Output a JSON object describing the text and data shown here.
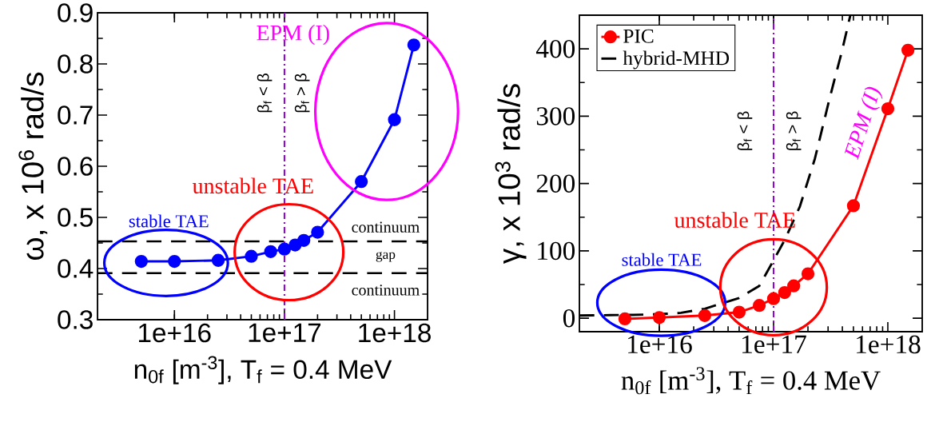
{
  "chart_data": [
    {
      "type": "line",
      "xlabel": "n$_{0f}$  [m$^{-3}$],   T$_{f}$ = 0.4 MeV",
      "ylabel": "ω,  x 10$^{6}$ rad/s",
      "log": "x",
      "xlim": [
        2000000000000000.0,
        2e+18
      ],
      "ylim": [
        0.3,
        0.9
      ],
      "xticks": [
        {
          "value": 1e+16,
          "label": "1e+16"
        },
        {
          "value": 1e+17,
          "label": "1e+17"
        },
        {
          "value": 1e+18,
          "label": "1e+18"
        }
      ],
      "yticks": [
        0.3,
        0.4,
        0.5,
        0.6,
        0.7,
        0.8,
        0.9
      ],
      "grid": false,
      "legend": false,
      "marker": "circle",
      "x": [
        5000000000000000.0,
        1e+16,
        2.5e+16,
        5e+16,
        7.5e+16,
        1e+17,
        1.25e+17,
        1.5e+17,
        2e+17,
        5e+17,
        1e+18,
        1.5e+18
      ],
      "series": [
        {
          "color": "#0000ff",
          "values": [
            0.414,
            0.414,
            0.416,
            0.424,
            0.433,
            0.438,
            0.446,
            0.455,
            0.471,
            0.57,
            0.691,
            0.837
          ]
        }
      ],
      "ref_lines": [
        {
          "axis": "y",
          "value": 0.453,
          "color": "#000000",
          "line_style": "dashed"
        },
        {
          "axis": "y",
          "value": 0.391,
          "color": "#000000",
          "line_style": "dashed"
        },
        {
          "axis": "x",
          "value": 1e+17,
          "color": "#9400d3",
          "line_style": "dashdot"
        }
      ],
      "annotations": [
        "stable TAE",
        "unstable TAE",
        "EPM (I)",
        "continuum",
        "gap",
        "continuum",
        "β$_{f}$ < β",
        "β$_{f}$ > β"
      ]
    },
    {
      "type": "line",
      "xlabel": "n$_{0f}$ [m$^{-3}$],  T$_{f}$ = 0.4 MeV",
      "ylabel": "γ,  x 10$^{3}$ rad/s",
      "log": "x",
      "xlim": [
        2000000000000000.0,
        2e+18
      ],
      "ylim": [
        -20,
        450
      ],
      "xticks": [
        {
          "value": 1e+16,
          "label": "1e+16"
        },
        {
          "value": 1e+17,
          "label": "1e+17"
        },
        {
          "value": 1e+18,
          "label": "1e+18"
        }
      ],
      "yticks": [
        0,
        100,
        200,
        300,
        400
      ],
      "grid": false,
      "legend": "top left",
      "x": [
        5000000000000000.0,
        1e+16,
        2.5e+16,
        5e+16,
        7.5e+16,
        1e+17,
        1.25e+17,
        1.5e+17,
        2e+17,
        5e+17,
        1e+18,
        1.5e+18
      ],
      "series": [
        {
          "name": "PIC",
          "color": "#ff0000",
          "marker": "circle",
          "line_style": "solid",
          "values": [
            -1,
            1,
            4,
            9,
            19,
            29,
            38,
            48,
            66,
            167,
            311,
            398
          ]
        },
        {
          "name": "hybrid-MHD",
          "color": "#000000",
          "marker": "none",
          "line_style": "dashed",
          "x": [
            2000000000000000.0,
            5900000000000000.0,
            1e+16,
            1.55e+16,
            2.5e+16,
            5e+16,
            7.5e+16,
            1e+17,
            1.26e+17,
            1.7e+17,
            2.3e+17,
            3.1e+17,
            3.96e+17,
            4.7e+17
          ],
          "values": [
            4,
            5,
            6,
            8,
            14,
            30,
            48,
            86,
            117,
            166,
            237,
            327,
            396,
            450
          ]
        }
      ],
      "ref_lines": [
        {
          "axis": "x",
          "value": 1e+17,
          "color": "#9400d3",
          "line_style": "dashdot"
        }
      ],
      "annotations": [
        "stable TAE",
        "unstable TAE",
        "EPM (I)",
        "β$_{f}$ < β",
        "β$_{f}$ > β"
      ]
    }
  ]
}
